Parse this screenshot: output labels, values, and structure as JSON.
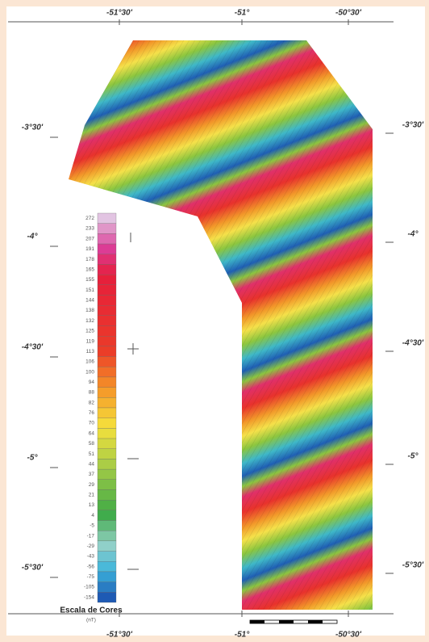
{
  "axes": {
    "top": [
      "-51°30'",
      "-51°",
      "-50°30'"
    ],
    "bottom": [
      "-51°30'",
      "-51°",
      "-50°30'"
    ],
    "left": [
      "-3°30'",
      "-4°",
      "-4°30'",
      "-5°",
      "-5°30'"
    ],
    "right": [
      "-3°30'",
      "-4°",
      "-4°30'",
      "-5°",
      "-5°30'"
    ]
  },
  "legend": {
    "title": "Escala de Cores",
    "unit": "(nT)",
    "values": [
      "272",
      "233",
      "207",
      "191",
      "178",
      "165",
      "155",
      "151",
      "144",
      "138",
      "132",
      "125",
      "119",
      "113",
      "106",
      "100",
      "94",
      "88",
      "82",
      "76",
      "70",
      "64",
      "58",
      "51",
      "44",
      "37",
      "29",
      "21",
      "13",
      "4",
      "-5",
      "-17",
      "-29",
      "-43",
      "-56",
      "-75",
      "-105",
      "-154"
    ]
  }
}
